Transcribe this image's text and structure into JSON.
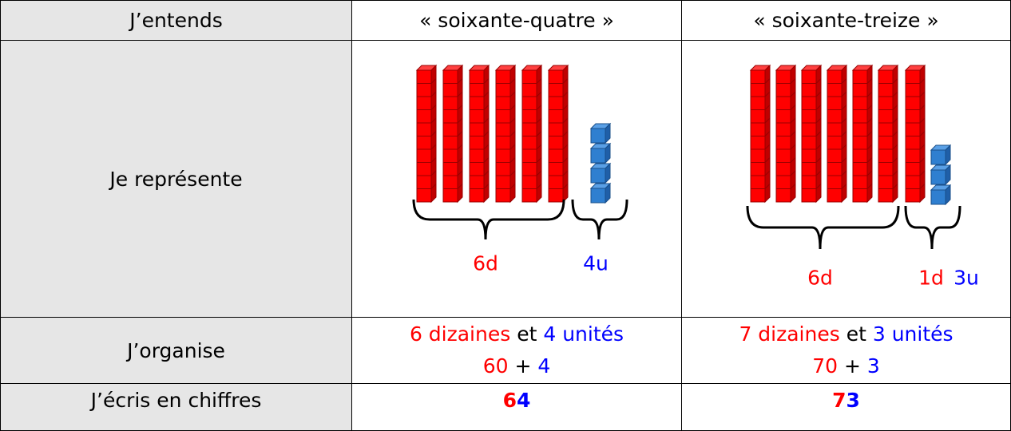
{
  "header": {
    "label": "J’entends",
    "col1": "« soixante-quatre »",
    "col2": "« soixante-treize »"
  },
  "represent": {
    "label": "Je représente",
    "col1": {
      "tens": "6d",
      "units": "4u"
    },
    "col2": {
      "tens": "6d",
      "extra_tens": "1d",
      "units": "3u"
    }
  },
  "organise": {
    "label": "J’organise",
    "col1": {
      "tens": "6 dizaines",
      "and": "et",
      "units": "4 unités",
      "tens_value": "60",
      "plus": "+",
      "units_value": "4"
    },
    "col2": {
      "tens": "7 dizaines",
      "and": "et",
      "units": "3 unités",
      "tens_value": "70",
      "plus": "+",
      "units_value": "3"
    }
  },
  "write": {
    "label": "J’écris en chiffres",
    "col1": {
      "tens_digit": "6",
      "units_digit": "4"
    },
    "col2": {
      "tens_digit": "7",
      "units_digit": "3"
    }
  }
}
